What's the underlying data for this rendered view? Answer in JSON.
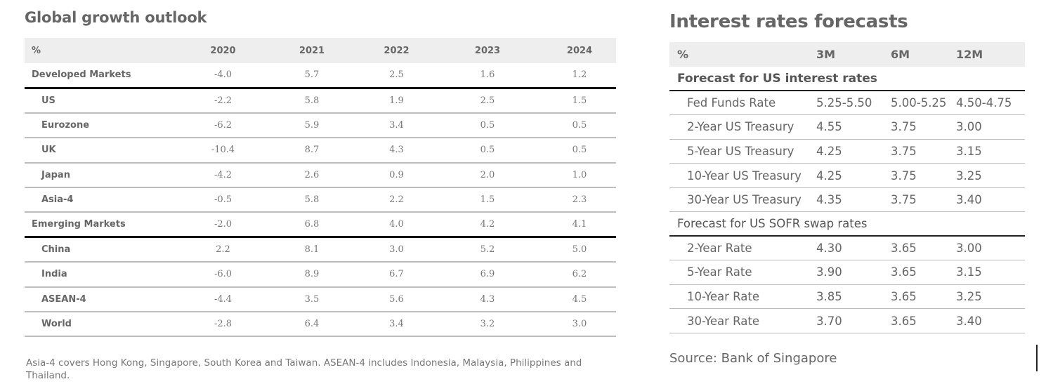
{
  "growth": {
    "title": "Global growth outlook",
    "headers": [
      "%",
      "2020",
      "2021",
      "2022",
      "2023",
      "2024"
    ],
    "rows": [
      {
        "label": "Developed Markets",
        "group": true,
        "values": [
          "-4.0",
          "5.7",
          "2.5",
          "1.6",
          "1.2"
        ]
      },
      {
        "label": "US",
        "group": false,
        "values": [
          "-2.2",
          "5.8",
          "1.9",
          "2.5",
          "1.5"
        ]
      },
      {
        "label": "Eurozone",
        "group": false,
        "values": [
          "-6.2",
          "5.9",
          "3.4",
          "0.5",
          "0.5"
        ]
      },
      {
        "label": "UK",
        "group": false,
        "values": [
          "-10.4",
          "8.7",
          "4.3",
          "0.5",
          "0.5"
        ]
      },
      {
        "label": "Japan",
        "group": false,
        "values": [
          "-4.2",
          "2.6",
          "0.9",
          "2.0",
          "1.0"
        ]
      },
      {
        "label": "Asia-4",
        "group": false,
        "values": [
          "-0.5",
          "5.8",
          "2.2",
          "1.5",
          "2.3"
        ]
      },
      {
        "label": "Emerging Markets",
        "group": true,
        "values": [
          "-2.0",
          "6.8",
          "4.0",
          "4.2",
          "4.1"
        ]
      },
      {
        "label": "China",
        "group": false,
        "values": [
          "2.2",
          "8.1",
          "3.0",
          "5.2",
          "5.0"
        ]
      },
      {
        "label": "India",
        "group": false,
        "values": [
          "-6.0",
          "8.9",
          "6.7",
          "6.9",
          "6.2"
        ]
      },
      {
        "label": "ASEAN-4",
        "group": false,
        "values": [
          "-4.4",
          "3.5",
          "5.6",
          "4.3",
          "4.5"
        ]
      },
      {
        "label": "World",
        "group": false,
        "values": [
          "-2.8",
          "6.4",
          "3.4",
          "3.2",
          "3.0"
        ]
      }
    ],
    "footnote": "Asia-4 covers Hong Kong, Singapore, South Korea and Taiwan. ASEAN-4 includes Indonesia, Malaysia, Philippines and Thailand."
  },
  "rates": {
    "title": "Interest rates forecasts",
    "headers": [
      "%",
      "3M",
      "6M",
      "12M"
    ],
    "sections": [
      {
        "title": "Forecast for US interest rates",
        "bold": true,
        "rows": [
          {
            "label": "Fed Funds Rate",
            "values": [
              "5.25-5.50",
              "5.00-5.25",
              "4.50-4.75"
            ]
          },
          {
            "label": "2-Year US Treasury",
            "values": [
              "4.55",
              "3.75",
              "3.00"
            ]
          },
          {
            "label": "5-Year US Treasury",
            "values": [
              "4.25",
              "3.75",
              "3.15"
            ]
          },
          {
            "label": "10-Year US Treasury",
            "values": [
              "4.25",
              "3.75",
              "3.25"
            ]
          },
          {
            "label": "30-Year US Treasury",
            "values": [
              "4.35",
              "3.75",
              "3.40"
            ]
          }
        ]
      },
      {
        "title": "Forecast for US SOFR swap rates",
        "bold": false,
        "rows": [
          {
            "label": "2-Year Rate",
            "values": [
              "4.30",
              "3.65",
              "3.00"
            ]
          },
          {
            "label": "5-Year Rate",
            "values": [
              "3.90",
              "3.65",
              "3.15"
            ]
          },
          {
            "label": "10-Year Rate",
            "values": [
              "3.85",
              "3.65",
              "3.25"
            ]
          },
          {
            "label": "30-Year Rate",
            "values": [
              "3.70",
              "3.65",
              "3.40"
            ]
          }
        ]
      }
    ],
    "source": "Source: Bank of Singapore"
  }
}
